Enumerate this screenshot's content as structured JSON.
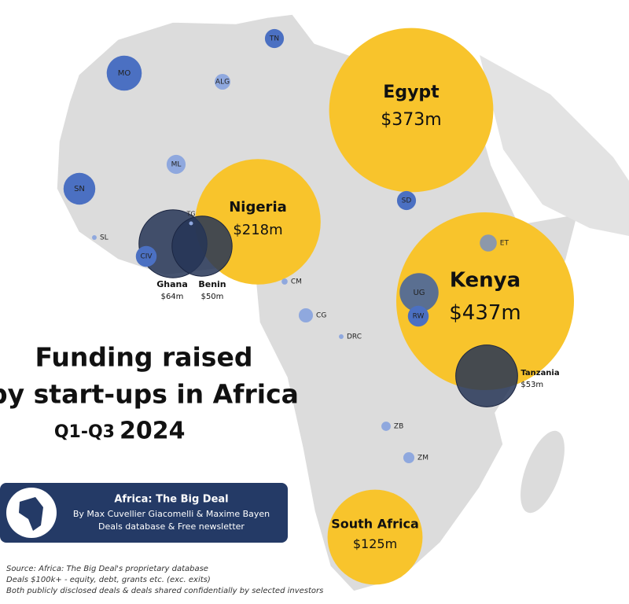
{
  "chart_data": {
    "type": "bubble-map",
    "title": [
      "Funding raised",
      "by start-ups in Africa"
    ],
    "period": "Q1-Q3",
    "year": "2024",
    "banner": {
      "title": "Africa: The Big Deal",
      "authors": "By Max Cuvellier Giacomelli & Maxime Bayen",
      "tagline": "Deals database & Free newsletter"
    },
    "footnotes": [
      "Source: Africa: The Big Deal's proprietary database",
      "Deals $100k+ - equity, debt, grants etc. (exc. exits)",
      "Both publicly disclosed deals & deals shared confidentially by selected investors"
    ],
    "bubbles": [
      {
        "name": "Egypt",
        "value": 373,
        "value_label": "$373m",
        "color": "#f8c42c"
      },
      {
        "name": "Nigeria",
        "value": 218,
        "value_label": "$218m",
        "color": "#f8c42c"
      },
      {
        "name": "Kenya",
        "value": 437,
        "value_label": "$437m",
        "color": "#f8c42c"
      },
      {
        "name": "South Africa",
        "value": 125,
        "value_label": "$125m",
        "color": "#f8c42c"
      },
      {
        "name": "Ghana",
        "value": 64,
        "value_label": "$64m",
        "color": "#263556"
      },
      {
        "name": "Benin",
        "value": 50,
        "value_label": "$50m",
        "color": "#263556"
      },
      {
        "name": "Tanzania",
        "value": 53,
        "value_label": "$53m",
        "color": "#263556"
      },
      {
        "name": "MO",
        "value": 17,
        "color": "#4b70c2"
      },
      {
        "name": "TN",
        "value": 5,
        "color": "#4b70c2"
      },
      {
        "name": "ALG",
        "value": 3.4,
        "color": "#8fa8de"
      },
      {
        "name": "ML",
        "value": 5,
        "color": "#8fa8de"
      },
      {
        "name": "SN",
        "value": 14,
        "color": "#4b70c2"
      },
      {
        "name": "SL",
        "value": 0.3,
        "color": "#8fa8de"
      },
      {
        "name": "TG",
        "value": 0.2,
        "color": "#8fa8de"
      },
      {
        "name": "CIV",
        "value": 6,
        "color": "#4b70c2"
      },
      {
        "name": "CM",
        "value": 0.5,
        "color": "#8fa8de"
      },
      {
        "name": "CG",
        "value": 2.8,
        "color": "#8fa8de"
      },
      {
        "name": "DRC",
        "value": 0.3,
        "color": "#8fa8de"
      },
      {
        "name": "SD",
        "value": 5,
        "color": "#4b70c2"
      },
      {
        "name": "ET",
        "value": 4,
        "color": "#8c98aa"
      },
      {
        "name": "UG",
        "value": 21,
        "color": "#5a6f91"
      },
      {
        "name": "RW",
        "value": 6,
        "color": "#4b70c2"
      },
      {
        "name": "ZB",
        "value": 1.2,
        "color": "#8fa8de"
      },
      {
        "name": "ZM",
        "value": 1.7,
        "color": "#8fa8de"
      }
    ]
  }
}
